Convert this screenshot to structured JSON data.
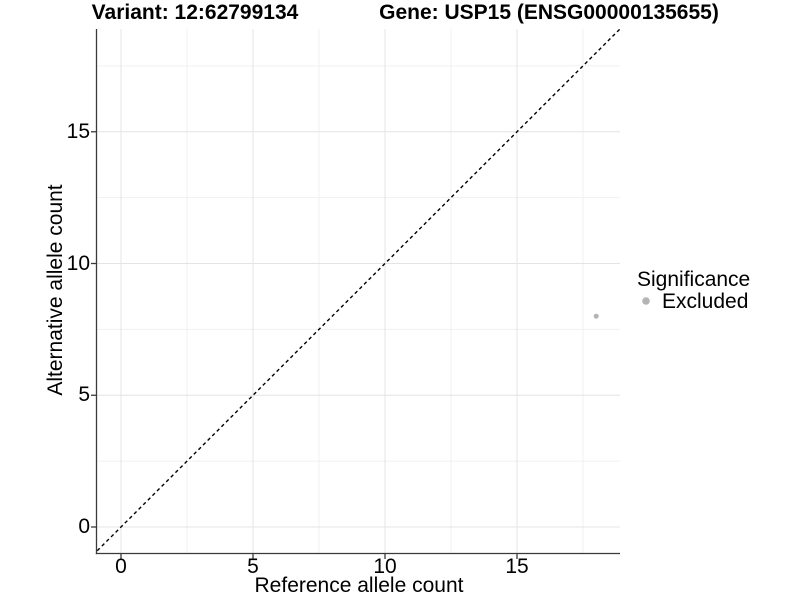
{
  "header": {
    "variant_title": "Variant: 12:62799134",
    "gene_title": "Gene: USP15 (ENSG00000135655)"
  },
  "axes": {
    "x": {
      "label": "Reference allele count",
      "ticks": [
        "0",
        "5",
        "10",
        "15"
      ]
    },
    "y": {
      "label": "Alternative allele count",
      "ticks": [
        "0",
        "5",
        "10",
        "15"
      ]
    }
  },
  "legend": {
    "title": "Significance",
    "items": [
      {
        "label": "Excluded",
        "marker_color": "#b4b4b4"
      }
    ]
  },
  "chart_data": {
    "type": "scatter",
    "title": "Variant: 12:62799134 / Gene: USP15 (ENSG00000135655)",
    "xlabel": "Reference allele count",
    "ylabel": "Alternative allele count",
    "xlim": [
      -0.9,
      18.9
    ],
    "ylim": [
      -0.9,
      18.9
    ],
    "x_ticks": [
      0,
      5,
      10,
      15
    ],
    "y_ticks": [
      0,
      5,
      10,
      15
    ],
    "grid": {
      "major": [
        0,
        5,
        10,
        15
      ],
      "minor": [
        2.5,
        7.5,
        12.5,
        17.5
      ]
    },
    "legend_position": "right",
    "series": [
      {
        "name": "Excluded",
        "color": "#b4b4b4",
        "marker": "circle",
        "points": [
          {
            "x": 18,
            "y": 8
          }
        ]
      }
    ],
    "annotations": [
      {
        "type": "identity_line",
        "style": "dashed",
        "color": "#000000",
        "from": [
          -0.9,
          -0.9
        ],
        "to": [
          18.9,
          18.9
        ]
      }
    ]
  },
  "colors": {
    "background": "#ffffff",
    "axis_line": "#3a3a3a",
    "grid_major": "#e4e4e4",
    "grid_minor": "#f1f1f1",
    "text": "#000000",
    "point": "#b4b4b4"
  }
}
